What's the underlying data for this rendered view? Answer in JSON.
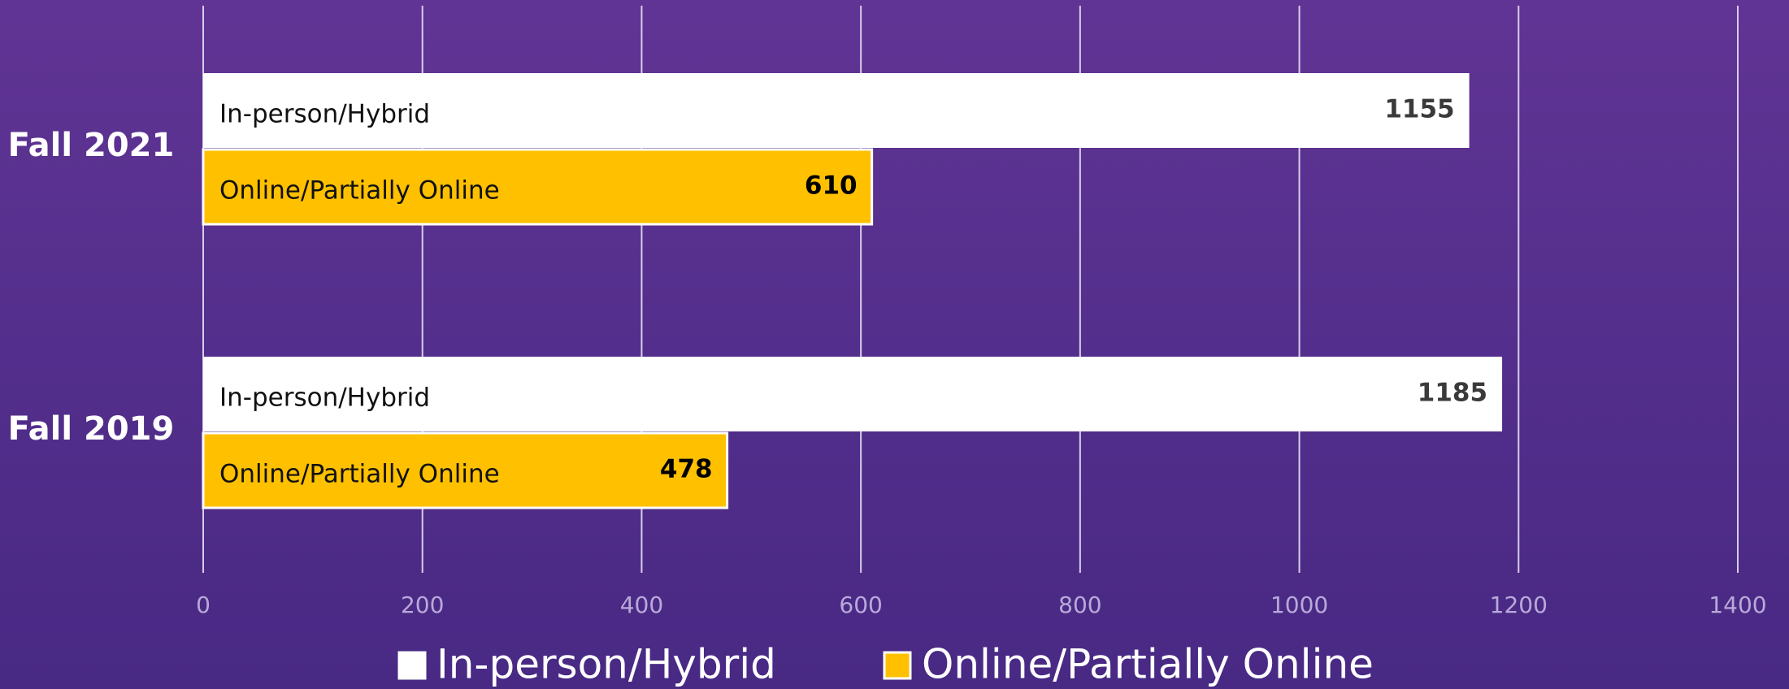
{
  "chart_data": {
    "type": "barh",
    "categories": [
      "Fall 2021",
      "Fall 2019"
    ],
    "series": [
      {
        "name": "In-person/Hybrid",
        "color": "#ffffff",
        "values": [
          1155,
          1185
        ]
      },
      {
        "name": "Online/Partially Online",
        "color": "#ffc000",
        "values": [
          610,
          478
        ]
      }
    ],
    "xlim": [
      0,
      1400
    ],
    "xticks": [
      0,
      200,
      400,
      600,
      800,
      1000,
      1200,
      1400
    ],
    "grid": true,
    "legend": "bottom"
  }
}
